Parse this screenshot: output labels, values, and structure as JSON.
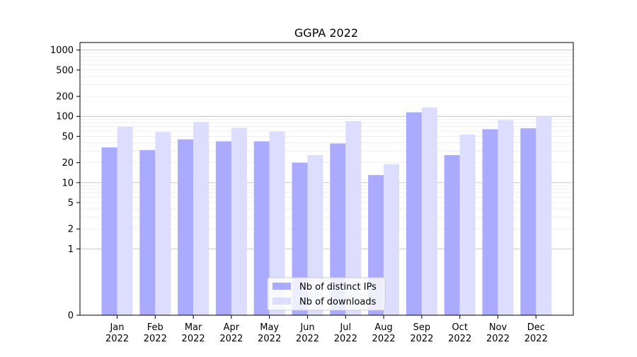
{
  "chart_data": {
    "type": "bar",
    "title": "GGPA 2022",
    "xlabel": "",
    "ylabel": "",
    "yscale": "symlog",
    "ylim": [
      0,
      1300
    ],
    "yticks": [
      {
        "value": 0,
        "label": "0"
      },
      {
        "value": 1,
        "label": "1"
      },
      {
        "value": 2,
        "label": "2"
      },
      {
        "value": 5,
        "label": "5"
      },
      {
        "value": 10,
        "label": "10"
      },
      {
        "value": 20,
        "label": "20"
      },
      {
        "value": 50,
        "label": "50"
      },
      {
        "value": 100,
        "label": "100"
      },
      {
        "value": 200,
        "label": "200"
      },
      {
        "value": 500,
        "label": "500"
      },
      {
        "value": 1000,
        "label": "1000"
      }
    ],
    "categories": [
      {
        "month": "Jan",
        "year": "2022"
      },
      {
        "month": "Feb",
        "year": "2022"
      },
      {
        "month": "Mar",
        "year": "2022"
      },
      {
        "month": "Apr",
        "year": "2022"
      },
      {
        "month": "May",
        "year": "2022"
      },
      {
        "month": "Jun",
        "year": "2022"
      },
      {
        "month": "Jul",
        "year": "2022"
      },
      {
        "month": "Aug",
        "year": "2022"
      },
      {
        "month": "Sep",
        "year": "2022"
      },
      {
        "month": "Oct",
        "year": "2022"
      },
      {
        "month": "Nov",
        "year": "2022"
      },
      {
        "month": "Dec",
        "year": "2022"
      }
    ],
    "series": [
      {
        "name": "Nb of distinct IPs",
        "color": "#aaaaff",
        "values": [
          34,
          31,
          45,
          42,
          42,
          20,
          39,
          13,
          115,
          26,
          64,
          66
        ]
      },
      {
        "name": "Nb of downloads",
        "color": "#ddddff",
        "values": [
          70,
          58,
          82,
          67,
          59,
          26,
          85,
          19,
          136,
          53,
          88,
          100
        ]
      }
    ],
    "grid": {
      "major": true,
      "minor": true
    },
    "legend_position": "lower-center"
  }
}
